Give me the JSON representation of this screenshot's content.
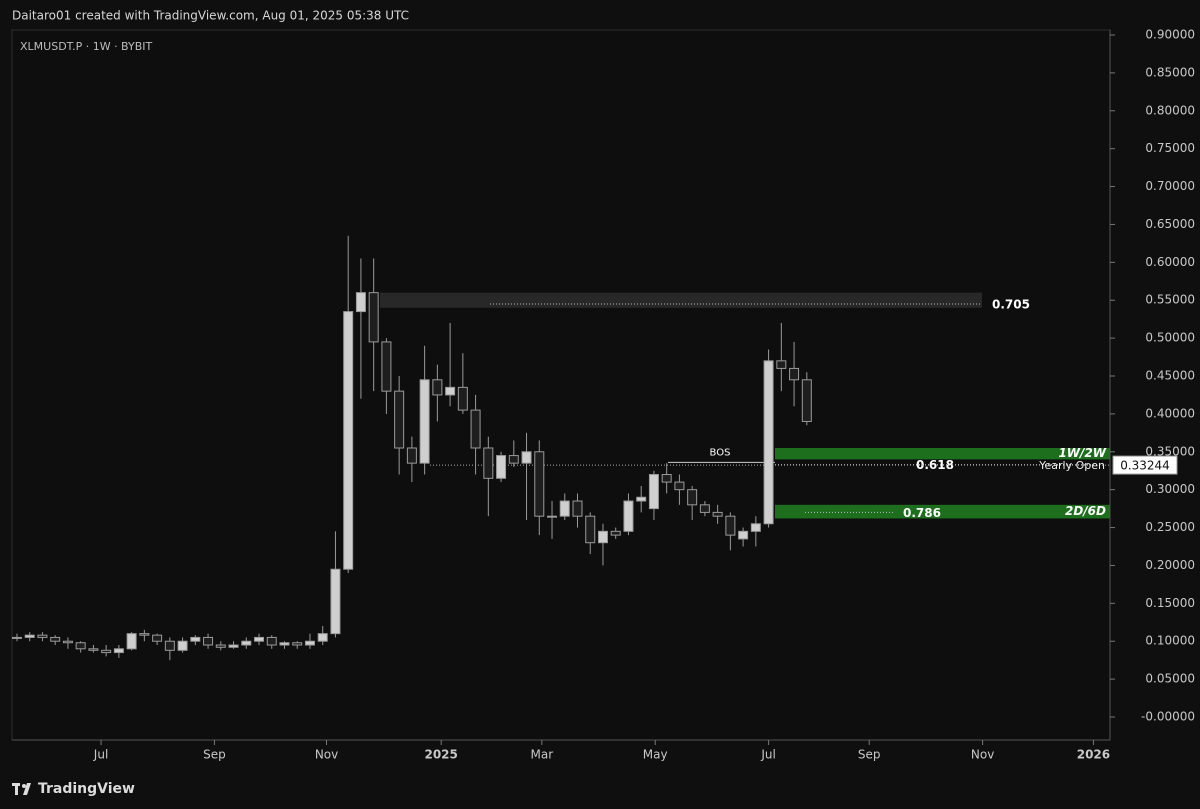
{
  "header": {
    "credit": "Daitaro01 created with TradingView.com, Aug 01, 2025 05:38 UTC"
  },
  "footer": {
    "brand": "TradingView"
  },
  "chart_data": {
    "type": "candlestick",
    "title": "XLMUSDT.P · 1W · BYBIT",
    "up_color": "#cfcfcf",
    "down_color": "#1e1e1e",
    "wick_color": "#9a9a9a",
    "xlim": [
      -0.39,
      85.8
    ],
    "xticks": [
      {
        "value": 6.6,
        "label": "Jul"
      },
      {
        "value": 15.5,
        "label": "Sep"
      },
      {
        "value": 24.3,
        "label": "Nov"
      },
      {
        "value": 33.3,
        "label": "2025"
      },
      {
        "value": 41.2,
        "label": "Mar"
      },
      {
        "value": 50.1,
        "label": "May"
      },
      {
        "value": 59.0,
        "label": "Jul"
      },
      {
        "value": 66.9,
        "label": "Sep"
      },
      {
        "value": 75.8,
        "label": "Nov"
      },
      {
        "value": 84.5,
        "label": "2026"
      }
    ],
    "ylim": [
      0,
      0.9
    ],
    "yticks": [
      {
        "value": 0.9,
        "label": "0.90000"
      },
      {
        "value": 0.85,
        "label": "0.85000"
      },
      {
        "value": 0.8,
        "label": "0.80000"
      },
      {
        "value": 0.75,
        "label": "0.75000"
      },
      {
        "value": 0.7,
        "label": "0.70000"
      },
      {
        "value": 0.65,
        "label": "0.65000"
      },
      {
        "value": 0.6,
        "label": "0.60000"
      },
      {
        "value": 0.55,
        "label": "0.55000"
      },
      {
        "value": 0.5,
        "label": "0.50000"
      },
      {
        "value": 0.45,
        "label": "0.45000"
      },
      {
        "value": 0.4,
        "label": "0.40000"
      },
      {
        "value": 0.35,
        "label": "0.35000"
      },
      {
        "value": 0.3,
        "label": "0.30000"
      },
      {
        "value": 0.25,
        "label": "0.25000"
      },
      {
        "value": 0.2,
        "label": "0.20000"
      },
      {
        "value": 0.15,
        "label": "0.15000"
      },
      {
        "value": 0.1,
        "label": "0.10000"
      },
      {
        "value": 0.05,
        "label": "0.05000"
      },
      {
        "value": 0,
        "label": "-0.00000"
      }
    ],
    "open": [
      0.105,
      0.105,
      0.108,
      0.105,
      0.1,
      0.098,
      0.09,
      0.088,
      0.085,
      0.09,
      0.11,
      0.108,
      0.1,
      0.088,
      0.1,
      0.105,
      0.095,
      0.092,
      0.095,
      0.1,
      0.105,
      0.095,
      0.098,
      0.095,
      0.1,
      0.11,
      0.195,
      0.535,
      0.56,
      0.495,
      0.43,
      0.355,
      0.335,
      0.445,
      0.425,
      0.435,
      0.405,
      0.355,
      0.315,
      0.345,
      0.335,
      0.35,
      0.265,
      0.265,
      0.285,
      0.265,
      0.23,
      0.245,
      0.245,
      0.285,
      0.275,
      0.32,
      0.31,
      0.3,
      0.28,
      0.27,
      0.265,
      0.235,
      0.245,
      0.255,
      0.47,
      0.46,
      0.445
    ],
    "high": [
      0.11,
      0.112,
      0.112,
      0.108,
      0.105,
      0.1,
      0.095,
      0.095,
      0.095,
      0.112,
      0.115,
      0.11,
      0.105,
      0.105,
      0.108,
      0.11,
      0.1,
      0.1,
      0.105,
      0.11,
      0.108,
      0.1,
      0.1,
      0.11,
      0.12,
      0.245,
      0.635,
      0.605,
      0.605,
      0.5,
      0.45,
      0.37,
      0.49,
      0.465,
      0.52,
      0.48,
      0.425,
      0.37,
      0.35,
      0.365,
      0.375,
      0.365,
      0.285,
      0.295,
      0.295,
      0.27,
      0.255,
      0.25,
      0.295,
      0.305,
      0.325,
      0.335,
      0.32,
      0.305,
      0.285,
      0.28,
      0.27,
      0.25,
      0.265,
      0.485,
      0.52,
      0.495,
      0.455
    ],
    "low": [
      0.1,
      0.1,
      0.1,
      0.095,
      0.09,
      0.085,
      0.085,
      0.08,
      0.078,
      0.088,
      0.1,
      0.095,
      0.075,
      0.085,
      0.095,
      0.09,
      0.088,
      0.09,
      0.09,
      0.095,
      0.09,
      0.09,
      0.09,
      0.09,
      0.095,
      0.105,
      0.19,
      0.42,
      0.43,
      0.4,
      0.32,
      0.31,
      0.32,
      0.39,
      0.41,
      0.4,
      0.32,
      0.265,
      0.31,
      0.33,
      0.26,
      0.24,
      0.235,
      0.26,
      0.25,
      0.215,
      0.2,
      0.235,
      0.24,
      0.27,
      0.26,
      0.295,
      0.28,
      0.26,
      0.265,
      0.255,
      0.22,
      0.225,
      0.225,
      0.25,
      0.43,
      0.41,
      0.385
    ],
    "close": [
      0.105,
      0.108,
      0.105,
      0.1,
      0.098,
      0.09,
      0.088,
      0.085,
      0.09,
      0.11,
      0.108,
      0.1,
      0.088,
      0.1,
      0.105,
      0.095,
      0.092,
      0.095,
      0.1,
      0.105,
      0.095,
      0.098,
      0.095,
      0.1,
      0.11,
      0.195,
      0.535,
      0.56,
      0.495,
      0.43,
      0.355,
      0.335,
      0.445,
      0.425,
      0.435,
      0.405,
      0.355,
      0.315,
      0.345,
      0.335,
      0.35,
      0.265,
      0.265,
      0.285,
      0.265,
      0.23,
      0.245,
      0.24,
      0.285,
      0.29,
      0.32,
      0.31,
      0.3,
      0.28,
      0.27,
      0.265,
      0.24,
      0.245,
      0.255,
      0.47,
      0.46,
      0.445,
      0.39
    ],
    "zones": [
      {
        "low": 0.54,
        "high": 0.56,
        "color": "#2b2b2b"
      },
      {
        "low": 0.34,
        "high": 0.355,
        "color": "#1f7a1f",
        "label": "1W/2W"
      },
      {
        "low": 0.262,
        "high": 0.28,
        "color": "#1f7a1f",
        "label": "2D/6D"
      }
    ],
    "fib_levels": [
      {
        "ratio": 0.705,
        "price": 0.545
      },
      {
        "ratio": 0.618,
        "price": 0.333
      },
      {
        "ratio": 0.786,
        "price": 0.27
      }
    ],
    "bos": {
      "label": "BOS",
      "price": 0.336
    },
    "yearly_open": {
      "label": "Yearly Open",
      "value": 0.33244
    }
  }
}
